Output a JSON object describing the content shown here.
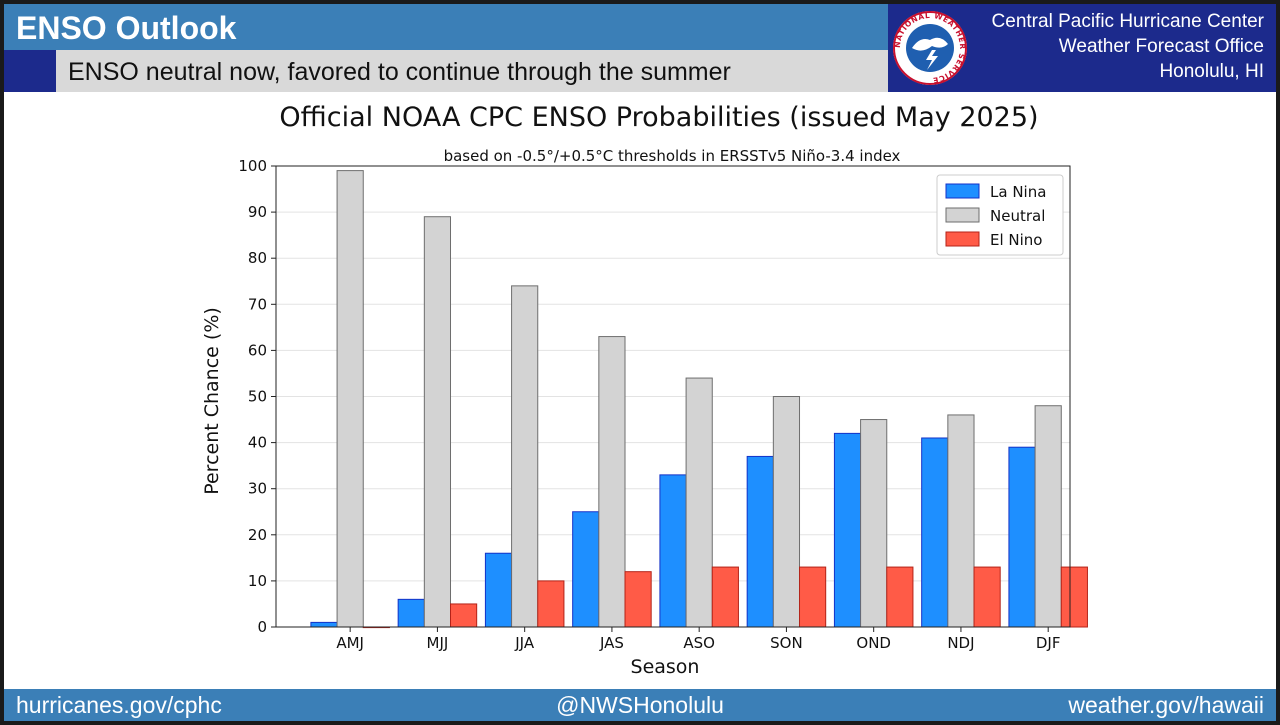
{
  "header": {
    "title": "ENSO Outlook",
    "subtitle": "ENSO neutral now, favored to continue through the summer",
    "org_line1": "Central Pacific Hurricane Center",
    "org_line2": "Weather Forecast Office",
    "org_line3": "Honolulu, HI",
    "logo_text": "NATIONAL WEATHER SERVICE"
  },
  "footer": {
    "left": "hurricanes.gov/cphc",
    "center": "@NWSHonolulu",
    "right": "weather.gov/hawaii"
  },
  "colors": {
    "banner_blue": "#3b7fb7",
    "navy": "#1c2a8c",
    "la_nina": "#1e8fff",
    "neutral": "#d3d3d3",
    "el_nino": "#ff5b47"
  },
  "chart_data": {
    "type": "bar",
    "title": "Official NOAA CPC ENSO Probabilities (issued May 2025)",
    "subtitle": "based on -0.5°/+0.5°C thresholds in ERSSTv5 Niño-3.4 index",
    "xlabel": "Season",
    "ylabel": "Percent Chance (%)",
    "ylim": [
      0,
      100
    ],
    "yticks": [
      0,
      10,
      20,
      30,
      40,
      50,
      60,
      70,
      80,
      90,
      100
    ],
    "grid": "horizontal",
    "legend_position": "top-right",
    "categories": [
      "AMJ",
      "MJJ",
      "JJA",
      "JAS",
      "ASO",
      "SON",
      "OND",
      "NDJ",
      "DJF"
    ],
    "series": [
      {
        "name": "La Nina",
        "color": "#1e8fff",
        "values": [
          1,
          6,
          16,
          25,
          33,
          37,
          42,
          41,
          39
        ]
      },
      {
        "name": "Neutral",
        "color": "#d3d3d3",
        "values": [
          99,
          89,
          74,
          63,
          54,
          50,
          45,
          46,
          48
        ]
      },
      {
        "name": "El Nino",
        "color": "#ff5b47",
        "values": [
          0,
          5,
          10,
          12,
          13,
          13,
          13,
          13,
          13
        ]
      }
    ]
  }
}
